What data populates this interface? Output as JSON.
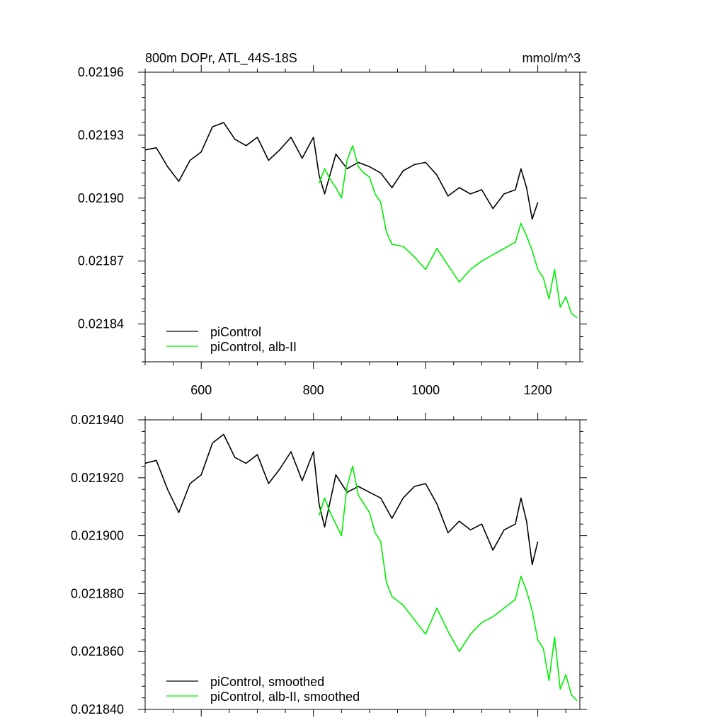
{
  "colors": {
    "control": "#000000",
    "albII": "#00ee00"
  },
  "chart_data": [
    {
      "type": "line",
      "title": "800m DOPr, ATL_44S-18S",
      "units": "mmol/m^3",
      "xlim": [
        500,
        1275
      ],
      "ylim": [
        0.021822,
        0.02196
      ],
      "xticks": [
        600,
        800,
        1000,
        1200
      ],
      "yticks": [
        0.02184,
        0.02187,
        0.0219,
        0.02193,
        0.02196
      ],
      "ytick_labels": [
        "0.02184",
        "0.02187",
        "0.02190",
        "0.02193",
        "0.02196"
      ],
      "xtick_labels": [
        "600",
        "800",
        "1000",
        "1200"
      ],
      "legend_position": "bottom-left",
      "series": [
        {
          "name": "piControl",
          "color": "#000000",
          "x": [
            500,
            520,
            540,
            560,
            580,
            600,
            620,
            640,
            660,
            680,
            700,
            720,
            740,
            760,
            780,
            800,
            810,
            820,
            840,
            860,
            880,
            900,
            920,
            940,
            960,
            980,
            1000,
            1020,
            1040,
            1060,
            1080,
            1100,
            1120,
            1140,
            1160,
            1170,
            1180,
            1190,
            1200
          ],
          "y": [
            0.021923,
            0.021924,
            0.021915,
            0.021908,
            0.021918,
            0.021922,
            0.021934,
            0.021936,
            0.021928,
            0.021925,
            0.021929,
            0.021918,
            0.021923,
            0.021929,
            0.021919,
            0.021929,
            0.021911,
            0.021902,
            0.021921,
            0.021914,
            0.021917,
            0.021915,
            0.021912,
            0.021905,
            0.021913,
            0.021916,
            0.021917,
            0.021911,
            0.021901,
            0.021905,
            0.021902,
            0.021904,
            0.021895,
            0.021902,
            0.021904,
            0.021914,
            0.021905,
            0.02189,
            0.021898
          ]
        },
        {
          "name": "piControl, alb-II",
          "color": "#00ee00",
          "x": [
            810,
            820,
            830,
            840,
            850,
            860,
            870,
            880,
            890,
            900,
            910,
            920,
            930,
            940,
            960,
            980,
            1000,
            1020,
            1040,
            1060,
            1080,
            1100,
            1120,
            1140,
            1160,
            1170,
            1180,
            1190,
            1200,
            1210,
            1220,
            1230,
            1240,
            1250,
            1260,
            1270
          ],
          "y": [
            0.021907,
            0.021914,
            0.021909,
            0.021905,
            0.0219,
            0.021918,
            0.021925,
            0.021915,
            0.021912,
            0.02191,
            0.021902,
            0.021898,
            0.021884,
            0.021878,
            0.021877,
            0.021872,
            0.021866,
            0.021876,
            0.021868,
            0.02186,
            0.021866,
            0.02187,
            0.021873,
            0.021876,
            0.021879,
            0.021888,
            0.021882,
            0.021875,
            0.021866,
            0.021862,
            0.021852,
            0.021866,
            0.021848,
            0.021853,
            0.021845,
            0.021843
          ]
        }
      ]
    },
    {
      "type": "line",
      "xlim": [
        500,
        1275
      ],
      "ylim": [
        0.02184,
        0.02194
      ],
      "xticks": [
        600,
        800,
        1000,
        1200
      ],
      "yticks": [
        0.02184,
        0.02186,
        0.02188,
        0.0219,
        0.02192,
        0.02194
      ],
      "ytick_labels": [
        "0.021840",
        "0.021860",
        "0.021880",
        "0.021900",
        "0.021920",
        "0.021940"
      ],
      "legend_position": "bottom-left",
      "series": [
        {
          "name": "piControl, smoothed",
          "color": "#000000",
          "x": [
            500,
            520,
            540,
            560,
            580,
            600,
            620,
            640,
            660,
            680,
            700,
            720,
            740,
            760,
            780,
            800,
            810,
            820,
            840,
            860,
            880,
            900,
            920,
            940,
            960,
            980,
            1000,
            1020,
            1040,
            1060,
            1080,
            1100,
            1120,
            1140,
            1160,
            1170,
            1180,
            1190,
            1200
          ],
          "y": [
            0.021925,
            0.021926,
            0.021916,
            0.021908,
            0.021918,
            0.021921,
            0.021932,
            0.021935,
            0.021927,
            0.021925,
            0.021928,
            0.021918,
            0.021923,
            0.021929,
            0.021919,
            0.021929,
            0.021911,
            0.021903,
            0.021921,
            0.021915,
            0.021917,
            0.021915,
            0.021913,
            0.021906,
            0.021913,
            0.021917,
            0.021918,
            0.021911,
            0.021901,
            0.021905,
            0.021902,
            0.021904,
            0.021895,
            0.021902,
            0.021904,
            0.021913,
            0.021905,
            0.02189,
            0.021898
          ]
        },
        {
          "name": "piControl, alb-II, smoothed",
          "color": "#00ee00",
          "x": [
            810,
            820,
            830,
            840,
            850,
            860,
            870,
            880,
            890,
            900,
            910,
            920,
            930,
            940,
            960,
            980,
            1000,
            1020,
            1040,
            1060,
            1080,
            1100,
            1120,
            1140,
            1160,
            1170,
            1180,
            1190,
            1200,
            1210,
            1220,
            1230,
            1240,
            1250,
            1260,
            1270
          ],
          "y": [
            0.021907,
            0.021913,
            0.021908,
            0.021904,
            0.0219,
            0.021917,
            0.021924,
            0.021914,
            0.021911,
            0.021908,
            0.021901,
            0.021898,
            0.021884,
            0.021879,
            0.021876,
            0.021871,
            0.021866,
            0.021875,
            0.021867,
            0.02186,
            0.021866,
            0.02187,
            0.021872,
            0.021875,
            0.021878,
            0.021886,
            0.021881,
            0.021874,
            0.021864,
            0.021861,
            0.02185,
            0.021865,
            0.021847,
            0.021852,
            0.021845,
            0.021843
          ]
        }
      ]
    }
  ]
}
